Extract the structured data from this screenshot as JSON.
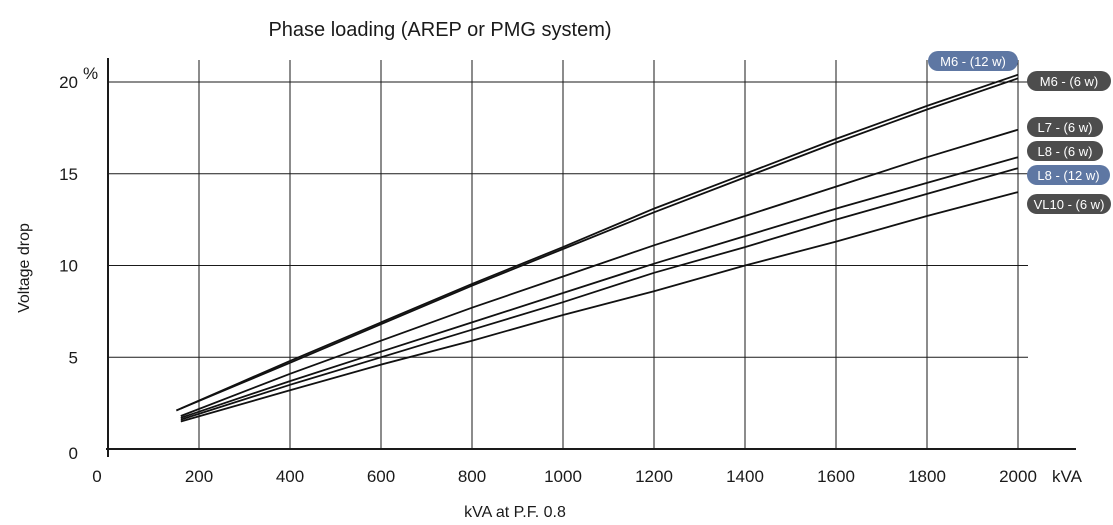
{
  "chart_data": {
    "type": "line",
    "title": "Phase loading (AREP or PMG system)",
    "xlabel": "kVA at P.F. 0.8",
    "ylabel": "Voltage drop",
    "x_unit": "kVA",
    "y_unit": "%",
    "xlim": [
      0,
      2100
    ],
    "ylim": [
      0,
      20
    ],
    "x_ticks": [
      "0",
      "200",
      "400",
      "600",
      "800",
      "1000",
      "1200",
      "1400",
      "1600",
      "1800",
      "2000"
    ],
    "y_ticks": [
      "0",
      "5",
      "10",
      "15",
      "20"
    ],
    "x_tick_values": [
      0,
      200,
      400,
      600,
      800,
      1000,
      1200,
      1400,
      1600,
      1800,
      2000
    ],
    "y_tick_values": [
      0,
      5,
      10,
      15,
      20
    ],
    "grid": true,
    "series": [
      {
        "name": "M6 - (12 w)",
        "badge_color": "#5e77a3",
        "points": [
          [
            150,
            2.1
          ],
          [
            400,
            4.8
          ],
          [
            600,
            6.9
          ],
          [
            800,
            9.0
          ],
          [
            1000,
            11.0
          ],
          [
            1200,
            13.1
          ],
          [
            1400,
            15.0
          ],
          [
            1600,
            16.9
          ],
          [
            1800,
            18.7
          ],
          [
            2000,
            20.4
          ]
        ]
      },
      {
        "name": "M6 - (6 w)",
        "badge_color": "#4d4d4d",
        "points": [
          [
            160,
            2.2
          ],
          [
            400,
            4.7
          ],
          [
            600,
            6.8
          ],
          [
            800,
            8.9
          ],
          [
            1000,
            10.9
          ],
          [
            1200,
            12.9
          ],
          [
            1400,
            14.8
          ],
          [
            1600,
            16.7
          ],
          [
            1800,
            18.5
          ],
          [
            2000,
            20.2
          ]
        ]
      },
      {
        "name": "L7 - (6 w)",
        "badge_color": "#4d4d4d",
        "points": [
          [
            160,
            1.8
          ],
          [
            400,
            4.1
          ],
          [
            600,
            5.9
          ],
          [
            800,
            7.7
          ],
          [
            1000,
            9.4
          ],
          [
            1200,
            11.1
          ],
          [
            1400,
            12.7
          ],
          [
            1600,
            14.3
          ],
          [
            1800,
            15.9
          ],
          [
            2000,
            17.4
          ]
        ]
      },
      {
        "name": "L8 - (6 w)",
        "badge_color": "#4d4d4d",
        "points": [
          [
            160,
            1.7
          ],
          [
            400,
            3.7
          ],
          [
            600,
            5.3
          ],
          [
            800,
            6.9
          ],
          [
            1000,
            8.5
          ],
          [
            1200,
            10.1
          ],
          [
            1400,
            11.6
          ],
          [
            1600,
            13.1
          ],
          [
            1800,
            14.5
          ],
          [
            2000,
            15.9
          ]
        ]
      },
      {
        "name": "L8 - (12 w)",
        "badge_color": "#5e77a3",
        "points": [
          [
            160,
            1.6
          ],
          [
            400,
            3.5
          ],
          [
            600,
            5.0
          ],
          [
            800,
            6.5
          ],
          [
            1000,
            8.0
          ],
          [
            1200,
            9.6
          ],
          [
            1400,
            11.0
          ],
          [
            1600,
            12.5
          ],
          [
            1800,
            13.9
          ],
          [
            2000,
            15.3
          ]
        ]
      },
      {
        "name": "VL10 - (6 w)",
        "badge_color": "#4d4d4d",
        "points": [
          [
            160,
            1.5
          ],
          [
            400,
            3.2
          ],
          [
            600,
            4.6
          ],
          [
            800,
            5.9
          ],
          [
            1000,
            7.3
          ],
          [
            1200,
            8.6
          ],
          [
            1400,
            10.0
          ],
          [
            1600,
            11.3
          ],
          [
            1800,
            12.7
          ],
          [
            2000,
            14.0
          ]
        ]
      }
    ]
  }
}
